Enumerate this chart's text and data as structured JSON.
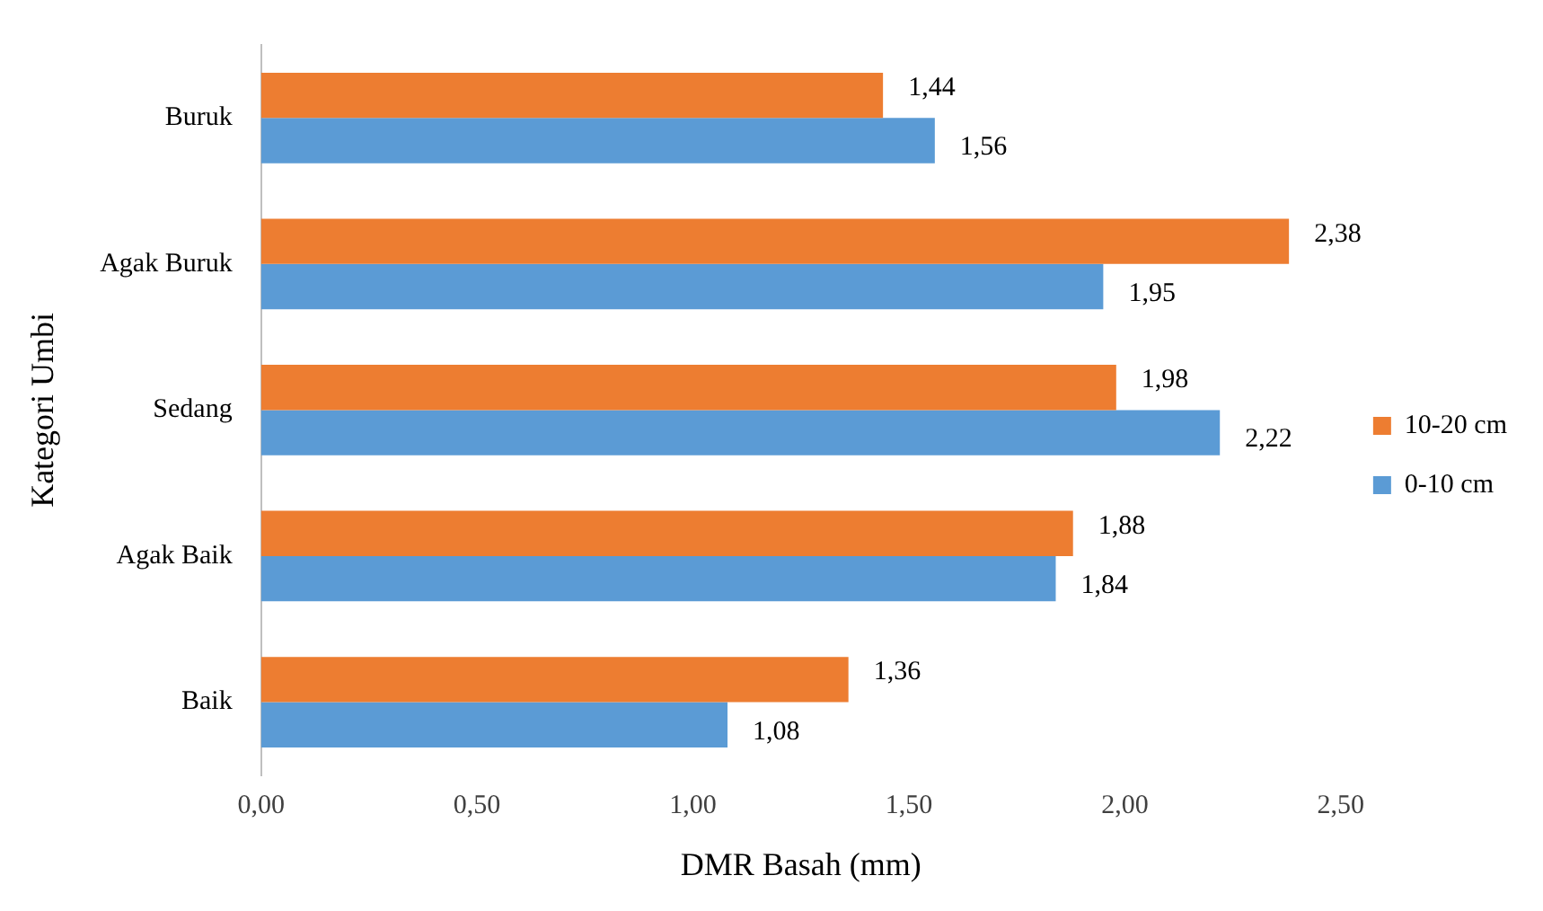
{
  "chart_data": {
    "type": "bar",
    "orientation": "horizontal",
    "xlabel": "DMR Basah (mm)",
    "ylabel": "Kategori Umbi",
    "categories": [
      "Buruk",
      "Agak Buruk",
      "Sedang",
      "Agak Baik",
      "Baik"
    ],
    "series": [
      {
        "name": "10-20 cm",
        "color": "#ed7d31",
        "values": [
          1.44,
          2.38,
          1.98,
          1.88,
          1.36
        ],
        "value_labels": [
          "1,44",
          "2,38",
          "1,98",
          "1,88",
          "1,36"
        ]
      },
      {
        "name": "0-10 cm",
        "color": "#5b9bd5",
        "values": [
          1.56,
          1.95,
          2.22,
          1.84,
          1.08
        ],
        "value_labels": [
          "1,56",
          "1,95",
          "2,22",
          "1,84",
          "1,08"
        ]
      }
    ],
    "xlim": [
      0,
      2.5
    ],
    "xticks": [
      {
        "value": 0,
        "label": "0,00"
      },
      {
        "value": 0.5,
        "label": "0,50"
      },
      {
        "value": 1,
        "label": "1,00"
      },
      {
        "value": 1.5,
        "label": "1,50"
      },
      {
        "value": 2,
        "label": "2,00"
      },
      {
        "value": 2.5,
        "label": "2,50"
      }
    ],
    "grid": false,
    "legend": "right"
  }
}
